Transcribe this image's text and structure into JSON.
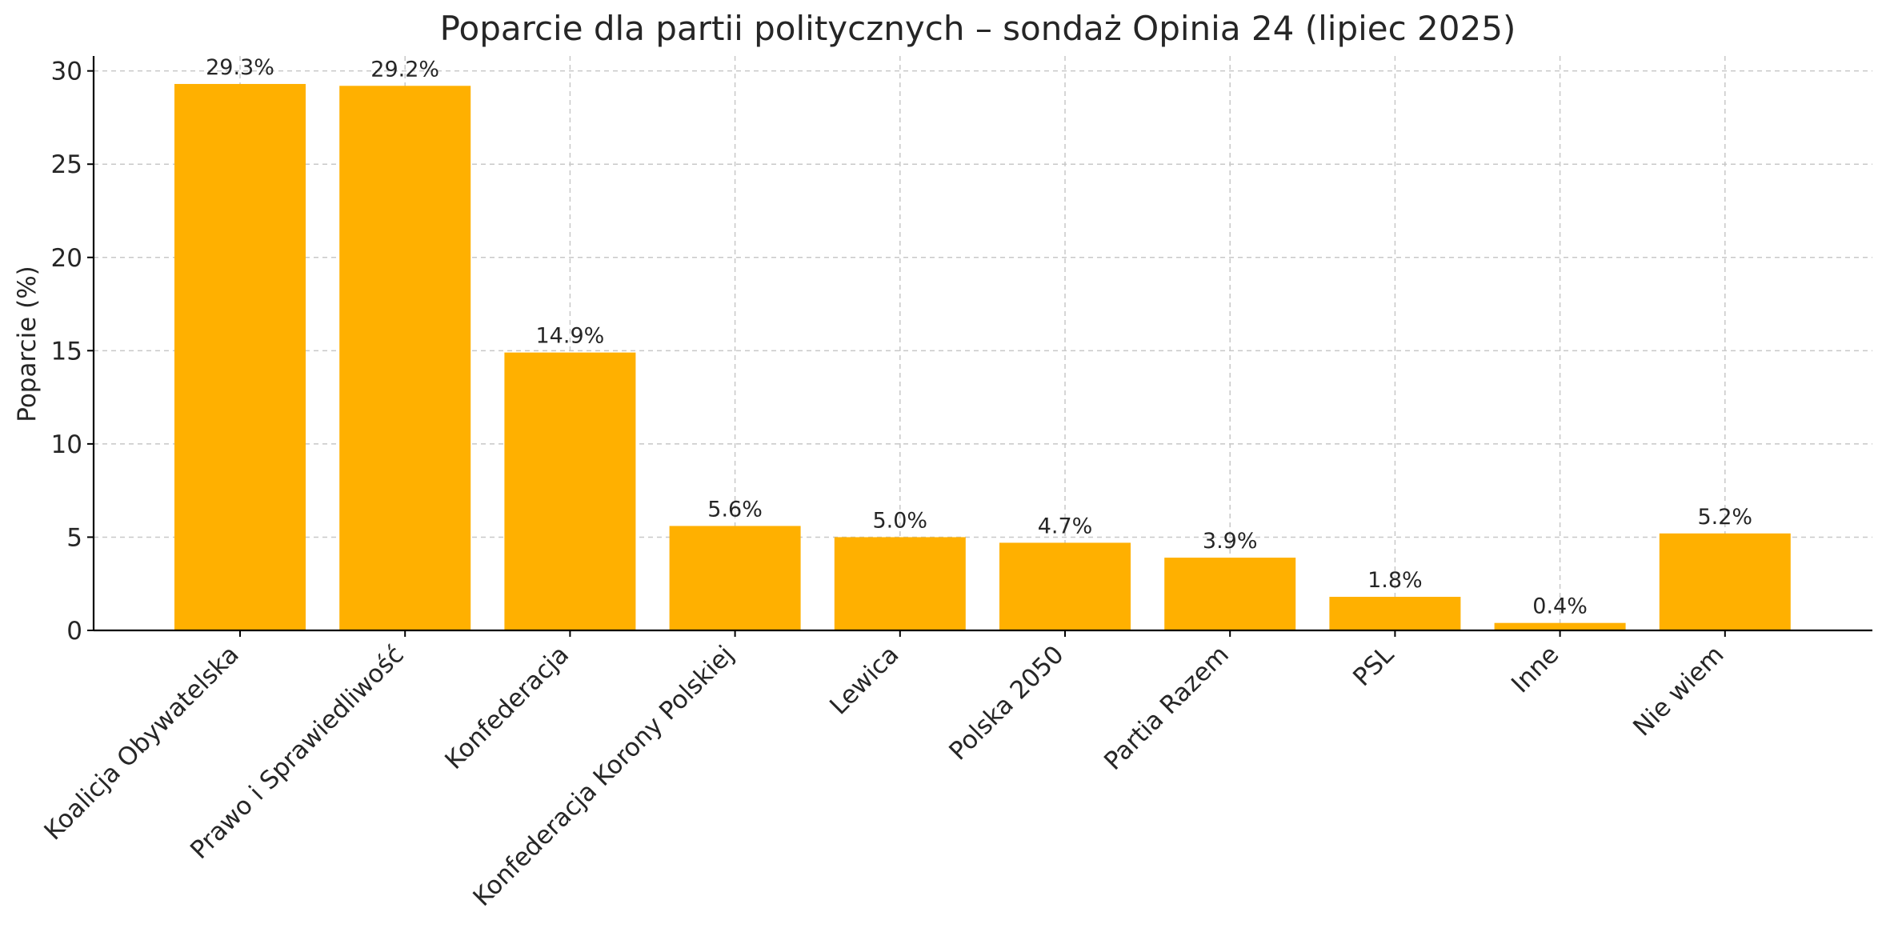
{
  "chart_data": {
    "type": "bar",
    "title": "Poparcie dla partii politycznych – sondaż Opinia 24 (lipiec 2025)",
    "xlabel": "",
    "ylabel": "Poparcie (%)",
    "ylim": [
      0,
      30.8
    ],
    "yticks": [
      0,
      5,
      10,
      15,
      20,
      25,
      30
    ],
    "grid": true,
    "categories": [
      "Koalicja Obywatelska",
      "Prawo i Sprawiedliwość",
      "Konfederacja",
      "Konfederacja Korony Polskiej",
      "Lewica",
      "Polska 2050",
      "Partia Razem",
      "PSL",
      "Inne",
      "Nie wiem"
    ],
    "values": [
      29.3,
      29.2,
      14.9,
      5.6,
      5.0,
      4.7,
      3.9,
      1.8,
      0.4,
      5.2
    ],
    "data_labels": [
      "29.3%",
      "29.2%",
      "14.9%",
      "5.6%",
      "5.0%",
      "4.7%",
      "3.9%",
      "1.8%",
      "0.4%",
      "5.2%"
    ],
    "colors": {
      "bar": "#FFB000",
      "grid": "#c8c8c8",
      "axis": "#000000",
      "text": "#262626"
    }
  }
}
